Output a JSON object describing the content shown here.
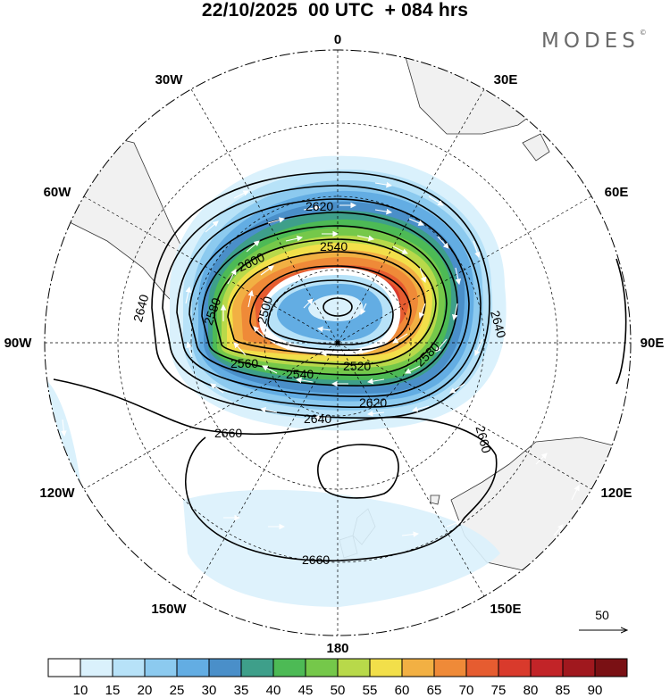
{
  "title": "22/10/2025  00 UTC  + 084 hrs",
  "brand": "MODES",
  "brand_mark": "©",
  "longitude_labels": {
    "top": "0",
    "top_left": "30W",
    "top_right": "30E",
    "upper_left": "60W",
    "upper_right": "60E",
    "left": "90W",
    "right": "90E",
    "lower_left": "120W",
    "lower_right": "120E",
    "bottom_left": "150W",
    "bottom_right": "150E",
    "bottom": "180"
  },
  "contour_labels": [
    "2620",
    "2540",
    "2600",
    "2580",
    "2640",
    "2500",
    "2560",
    "2540",
    "2520",
    "2580",
    "2640",
    "2620",
    "2640",
    "2660",
    "2660",
    "2660"
  ],
  "vector_reference": {
    "value": "50"
  },
  "colorbar": {
    "ticks": [
      "10",
      "15",
      "20",
      "25",
      "30",
      "35",
      "40",
      "45",
      "50",
      "55",
      "60",
      "65",
      "70",
      "75",
      "80",
      "85",
      "90"
    ],
    "colors": [
      "#ffffff",
      "#daf1fc",
      "#b7e2f8",
      "#8ccaef",
      "#63ade3",
      "#4a8fc9",
      "#3e9f8a",
      "#4dba55",
      "#75c84a",
      "#b8d94a",
      "#f2df4a",
      "#f2b043",
      "#ef8a38",
      "#e65c30",
      "#d93a2c",
      "#c22428",
      "#a0181e",
      "#7a1014"
    ]
  }
}
